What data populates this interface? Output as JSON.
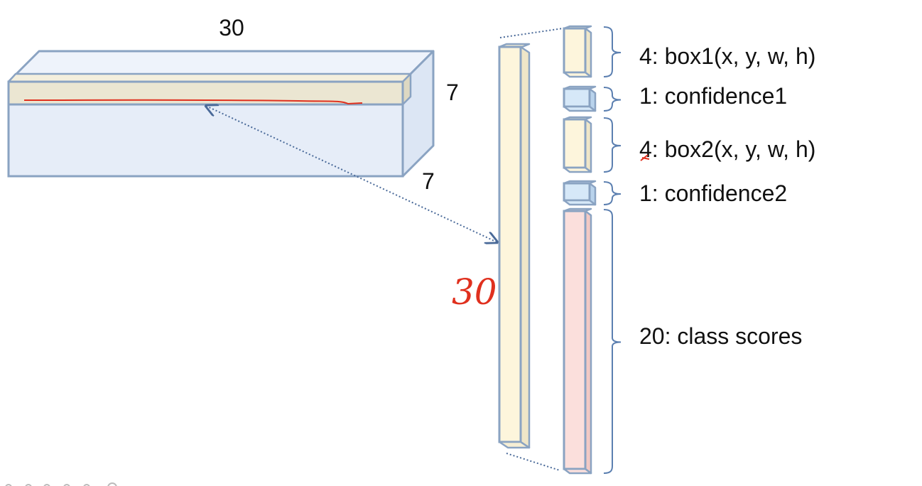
{
  "tensor": {
    "width_label": "30",
    "height_label": "7",
    "depth_label": "7"
  },
  "vector": {
    "length_annotation": "30"
  },
  "segments": [
    {
      "label": "4: box1(x, y, w, h)",
      "kind": "box"
    },
    {
      "label": "1: confidence1",
      "kind": "confidence"
    },
    {
      "label": "4: box2(x, y, w, h)",
      "kind": "box"
    },
    {
      "label": "1: confidence2",
      "kind": "confidence"
    },
    {
      "label": "20: class scores",
      "kind": "class"
    }
  ],
  "colors": {
    "outline": "#8aa3c2",
    "tensor_fill": "#e6edf8",
    "highlight_fill": "#ebe6d2",
    "box_fill": "#fdf5dc",
    "confidence_fill": "#d6e8f8",
    "class_fill": "#fbdfdc",
    "annotation": "#e0301e",
    "arrow": "#4a6a99"
  }
}
